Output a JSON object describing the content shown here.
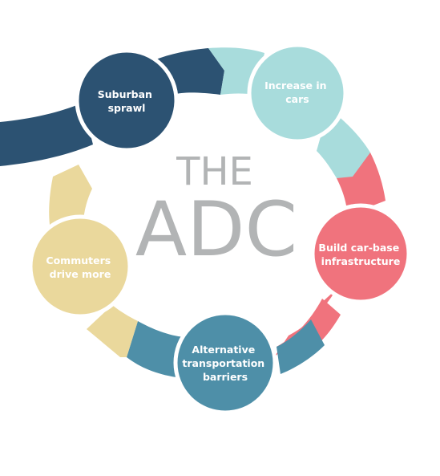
{
  "title": {
    "line1": "THE",
    "line2": "ADC"
  },
  "nodes": [
    {
      "id": "suburban",
      "lines": [
        "Suburban",
        "sprawl"
      ],
      "color": "#2c5272"
    },
    {
      "id": "cars",
      "lines": [
        "Increase in",
        "cars"
      ],
      "color": "#a8dcdc"
    },
    {
      "id": "infra",
      "lines": [
        "Build car-base",
        "infrastructure"
      ],
      "color": "#f0737d"
    },
    {
      "id": "barriers",
      "lines": [
        "Alternative",
        "transportation",
        "barriers"
      ],
      "color": "#4e8fa8"
    },
    {
      "id": "commuters",
      "lines": [
        "Commuters",
        "drive more"
      ],
      "color": "#ead89c"
    }
  ],
  "colors": {
    "title": "#b2b4b5",
    "background": "#ffffff",
    "ring_gap": "#ffffff"
  }
}
